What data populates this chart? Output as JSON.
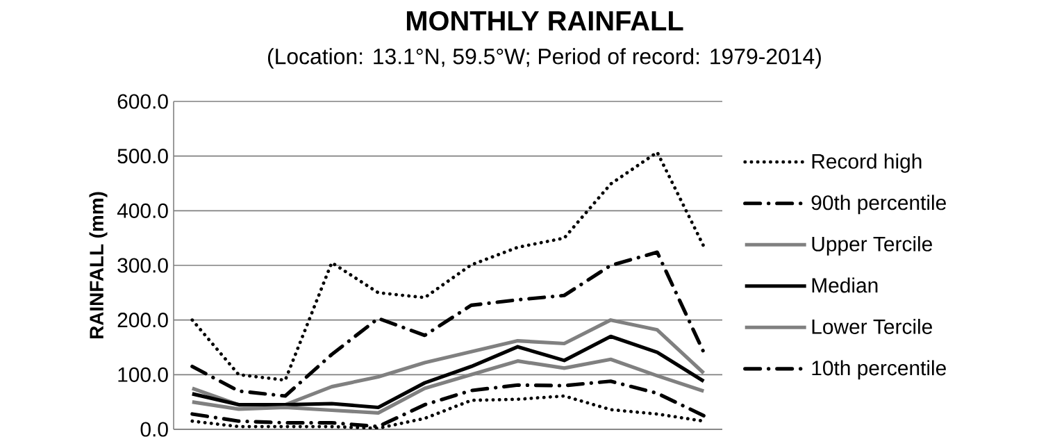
{
  "chart_data": {
    "type": "line",
    "title": "MONTHLY RAINFALL",
    "subtitle": "(Location: 13.1°N, 59.5°W; Period of record: 1979-2014)",
    "ylabel": "RAINFALL (mm)",
    "categories": [
      null,
      null,
      null,
      null,
      null,
      null,
      null,
      null,
      null,
      null,
      null,
      null
    ],
    "ylim": [
      0,
      600
    ],
    "yticks": [
      {
        "value": 0,
        "label": "0.0"
      },
      {
        "value": 100,
        "label": "100.0"
      },
      {
        "value": 200,
        "label": "200.0"
      },
      {
        "value": 300,
        "label": "300.0"
      },
      {
        "value": 400,
        "label": "400.0"
      },
      {
        "value": 500,
        "label": "500.0"
      },
      {
        "value": 600,
        "label": "600.0"
      }
    ],
    "grid": "y",
    "legend": "right",
    "tick_labels": "y",
    "series": [
      {
        "name": "Record high",
        "color": "#000000",
        "line_style": "dotted",
        "values": [
          200,
          100,
          90,
          305,
          250,
          241,
          301,
          333,
          350,
          449,
          507,
          335
        ]
      },
      {
        "name": "90th percentile",
        "color": "#000000",
        "line_style": "dashdot",
        "values": [
          115,
          70,
          61,
          137,
          203,
          172,
          227,
          237,
          245,
          300,
          324,
          141
        ]
      },
      {
        "name": "Upper Tercile",
        "color": "#808080",
        "line_style": "solid",
        "values": [
          75,
          45,
          45,
          78,
          96,
          122,
          142,
          162,
          157,
          200,
          182,
          103
        ]
      },
      {
        "name": "Median",
        "color": "#000000",
        "line_style": "solid",
        "values": [
          65,
          45,
          45,
          47,
          40,
          85,
          115,
          151,
          126,
          170,
          141,
          88
        ]
      },
      {
        "name": "Lower Tercile",
        "color": "#808080",
        "line_style": "solid",
        "values": [
          50,
          37,
          40,
          35,
          30,
          75,
          100,
          125,
          112,
          128,
          98,
          70
        ]
      },
      {
        "name": "10th percentile",
        "color": "#000000",
        "line_style": "dashdot",
        "values": [
          28,
          15,
          12,
          12,
          5,
          45,
          71,
          81,
          80,
          88,
          66,
          25
        ]
      },
      {
        "color": "#000000",
        "line_style": "dotted",
        "values": [
          15,
          5,
          5,
          5,
          2,
          20,
          53,
          55,
          61,
          36,
          28,
          15
        ]
      }
    ]
  }
}
